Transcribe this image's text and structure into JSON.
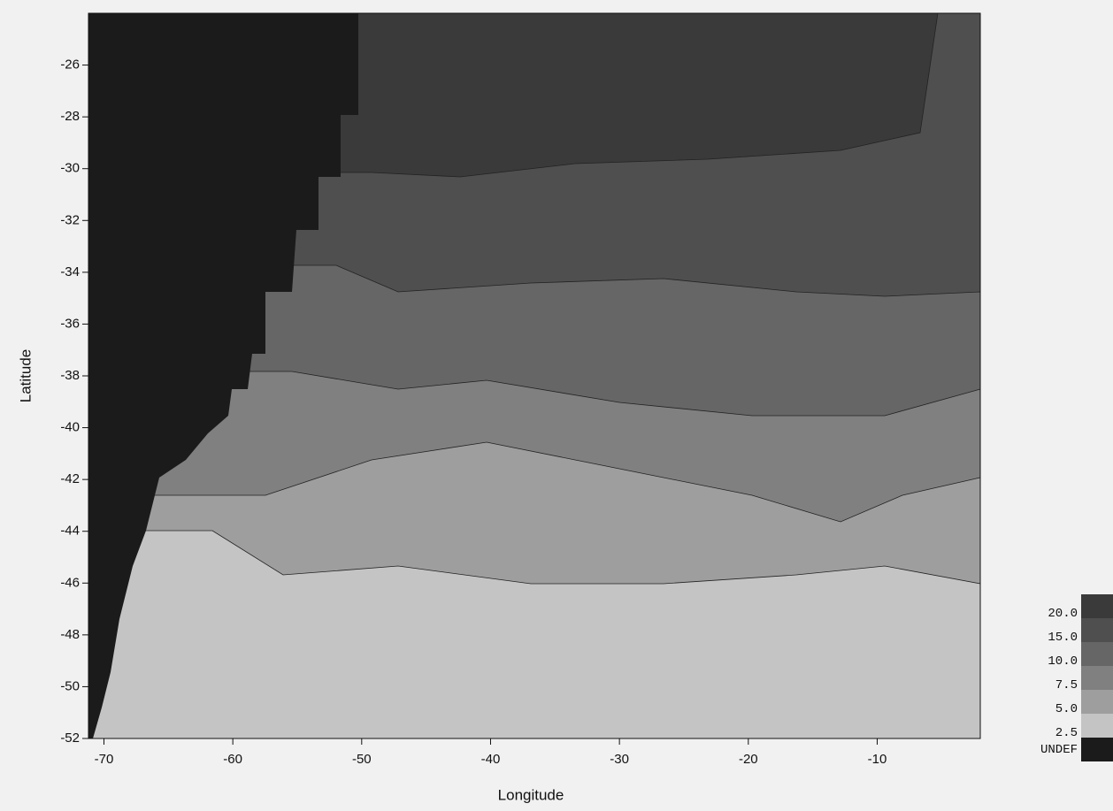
{
  "chart_data": {
    "type": "contour",
    "x_label": "Longitude",
    "y_label": "Latitude",
    "xlim": [
      -71.2,
      -2
    ],
    "ylim": [
      -52,
      -24
    ],
    "xticks": [
      -70,
      -60,
      -50,
      -40,
      -30,
      -20,
      -10
    ],
    "yticks": [
      -26,
      -28,
      -30,
      -32,
      -34,
      -36,
      -38,
      -40,
      -42,
      -44,
      -46,
      -48,
      -50,
      -52
    ],
    "levels": [
      {
        "value": 20,
        "label": "20.0"
      },
      {
        "value": 15,
        "label": "15.0"
      },
      {
        "value": 10,
        "label": "10.0"
      },
      {
        "value": 7.5,
        "label": "7.5"
      },
      {
        "value": 5,
        "label": "5.0"
      },
      {
        "value": 2.5,
        "label": "2.5"
      }
    ],
    "colors": [
      "#3a3a3a",
      "#4f4f4f",
      "#666666",
      "#808080",
      "#9e9e9e",
      "#c4c4c4"
    ],
    "undef_label": "UNDEF",
    "undef_color": "#1b1b1b"
  }
}
